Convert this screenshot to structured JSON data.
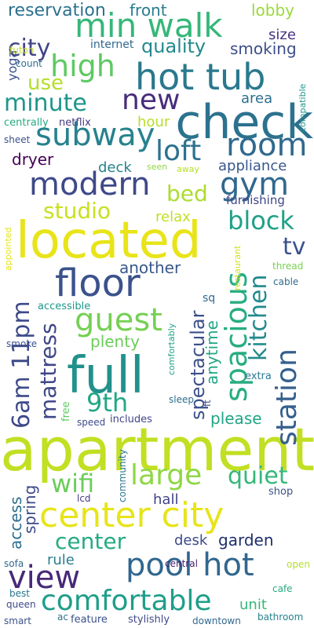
{
  "words": [
    {
      "text": "apartment",
      "color": "#c2df23"
    },
    {
      "text": "located",
      "color": "#e8e419"
    },
    {
      "text": "check",
      "color": "#2c728e"
    },
    {
      "text": "full",
      "color": "#21918c"
    },
    {
      "text": "center city",
      "color": "#e7e419"
    },
    {
      "text": "min walk",
      "color": "#35b779"
    },
    {
      "text": "hot tub",
      "color": "#2a788e"
    },
    {
      "text": "pool hot",
      "color": "#31668e"
    },
    {
      "text": "floor",
      "color": "#3b528b"
    },
    {
      "text": "spacious",
      "color": "#27ad81"
    },
    {
      "text": "modern",
      "color": "#3e4989"
    },
    {
      "text": "comfortable",
      "color": "#1f9e89"
    },
    {
      "text": "subway",
      "color": "#26828e"
    },
    {
      "text": "guest",
      "color": "#75d054"
    },
    {
      "text": "6am 11pm",
      "color": "#3e4a89"
    },
    {
      "text": "station",
      "color": "#355f8d"
    },
    {
      "text": "high",
      "color": "#5ec962"
    },
    {
      "text": "room",
      "color": "#30698e"
    },
    {
      "text": "view",
      "color": "#482878"
    },
    {
      "text": "large",
      "color": "#8fd744"
    },
    {
      "text": "gym",
      "color": "#31688e"
    },
    {
      "text": "loft",
      "color": "#2c728e"
    },
    {
      "text": "new",
      "color": "#472d7b"
    },
    {
      "text": "kitchen",
      "color": "#238a8d"
    },
    {
      "text": "mattress",
      "color": "#404688"
    },
    {
      "text": "minute",
      "color": "#1f968b"
    },
    {
      "text": "spectacular",
      "color": "#3c4f8a"
    },
    {
      "text": "9th",
      "color": "#22a785"
    },
    {
      "text": "wifi",
      "color": "#6ccd5a"
    },
    {
      "text": "center",
      "color": "#25ab82"
    },
    {
      "text": "studio",
      "color": "#c8e020"
    },
    {
      "text": "block",
      "color": "#1fa188"
    },
    {
      "text": "quiet",
      "color": "#35b779"
    },
    {
      "text": "city",
      "color": "#414487"
    },
    {
      "text": "tv",
      "color": "#3b528b"
    },
    {
      "text": "bed",
      "color": "#addc30"
    },
    {
      "text": "use",
      "color": "#b5de2b"
    },
    {
      "text": "quality",
      "color": "#23898e"
    },
    {
      "text": "anytime",
      "color": "#21a685"
    },
    {
      "text": "plenty",
      "color": "#6ccd5a"
    },
    {
      "text": "spring",
      "color": "#3e4a89"
    },
    {
      "text": "garden",
      "color": "#1f2f6d"
    },
    {
      "text": "access",
      "color": "#2e6f8e"
    },
    {
      "text": "reservation",
      "color": "#2c718e"
    },
    {
      "text": "please",
      "color": "#20a486"
    },
    {
      "text": "another",
      "color": "#38588c"
    },
    {
      "text": "appliance",
      "color": "#38588c"
    },
    {
      "text": "dryer",
      "color": "#440154"
    },
    {
      "text": "front",
      "color": "#287c8e"
    },
    {
      "text": "lobby",
      "color": "#9bd93c"
    },
    {
      "text": "smoking",
      "color": "#3d4e8a"
    },
    {
      "text": "size",
      "color": "#46337f"
    },
    {
      "text": "area",
      "color": "#2d708e"
    },
    {
      "text": "hour",
      "color": "#b8de29"
    },
    {
      "text": "deck",
      "color": "#26828e"
    },
    {
      "text": "relax",
      "color": "#c2df23"
    },
    {
      "text": "rule",
      "color": "#277f8e"
    },
    {
      "text": "desk",
      "color": "#3e4a89"
    },
    {
      "text": "unit",
      "color": "#35b779"
    },
    {
      "text": "hall",
      "color": "#414487"
    },
    {
      "text": "yoga",
      "color": "#3b528b"
    },
    {
      "text": "furnishing",
      "color": "#3f4788"
    },
    {
      "text": "internet",
      "color": "#31688e"
    },
    {
      "text": "count",
      "color": "#2e6e8e"
    },
    {
      "text": "futon",
      "color": "#c2df23"
    },
    {
      "text": "centrally",
      "color": "#25ab82"
    },
    {
      "text": "netflix",
      "color": "#453781"
    },
    {
      "text": "sheet",
      "color": "#3b528b"
    },
    {
      "text": "seen",
      "color": "#8fd744"
    },
    {
      "text": "away",
      "color": "#b5de2b"
    },
    {
      "text": "appointed",
      "color": "#e5e419"
    },
    {
      "text": "compatible",
      "color": "#1f968b"
    },
    {
      "text": "thread",
      "color": "#7ad151"
    },
    {
      "text": "restaurant",
      "color": "#d0e11c"
    },
    {
      "text": "cable",
      "color": "#2e6e8e"
    },
    {
      "text": "accessible",
      "color": "#1f978b"
    },
    {
      "text": "sq",
      "color": "#31688e"
    },
    {
      "text": "ft",
      "color": "#3e4989"
    },
    {
      "text": "smoke",
      "color": "#3b528b"
    },
    {
      "text": "comfortably",
      "color": "#1fa188"
    },
    {
      "text": "extra",
      "color": "#2a788e"
    },
    {
      "text": "free",
      "color": "#5ec962"
    },
    {
      "text": "speed",
      "color": "#3e4a89"
    },
    {
      "text": "sleep",
      "color": "#2e6e8e"
    },
    {
      "text": "includes",
      "color": "#404688"
    },
    {
      "text": "community",
      "color": "#2a788e"
    },
    {
      "text": "lcd",
      "color": "#443a83"
    },
    {
      "text": "shop",
      "color": "#3c4f8a"
    },
    {
      "text": "sofa",
      "color": "#31688e"
    },
    {
      "text": "open",
      "color": "#b5de2b"
    },
    {
      "text": "central",
      "color": "#481f70"
    },
    {
      "text": "cafe",
      "color": "#27ad81"
    },
    {
      "text": "best",
      "color": "#2a778e"
    },
    {
      "text": "queen",
      "color": "#3e4989"
    },
    {
      "text": "smart",
      "color": "#3b528b"
    },
    {
      "text": "ac",
      "color": "#2c728e"
    },
    {
      "text": "feature",
      "color": "#3b528b"
    },
    {
      "text": "stylishly",
      "color": "#3f4889"
    },
    {
      "text": "downtown",
      "color": "#31688e"
    },
    {
      "text": "bathroom",
      "color": "#26828e"
    }
  ]
}
